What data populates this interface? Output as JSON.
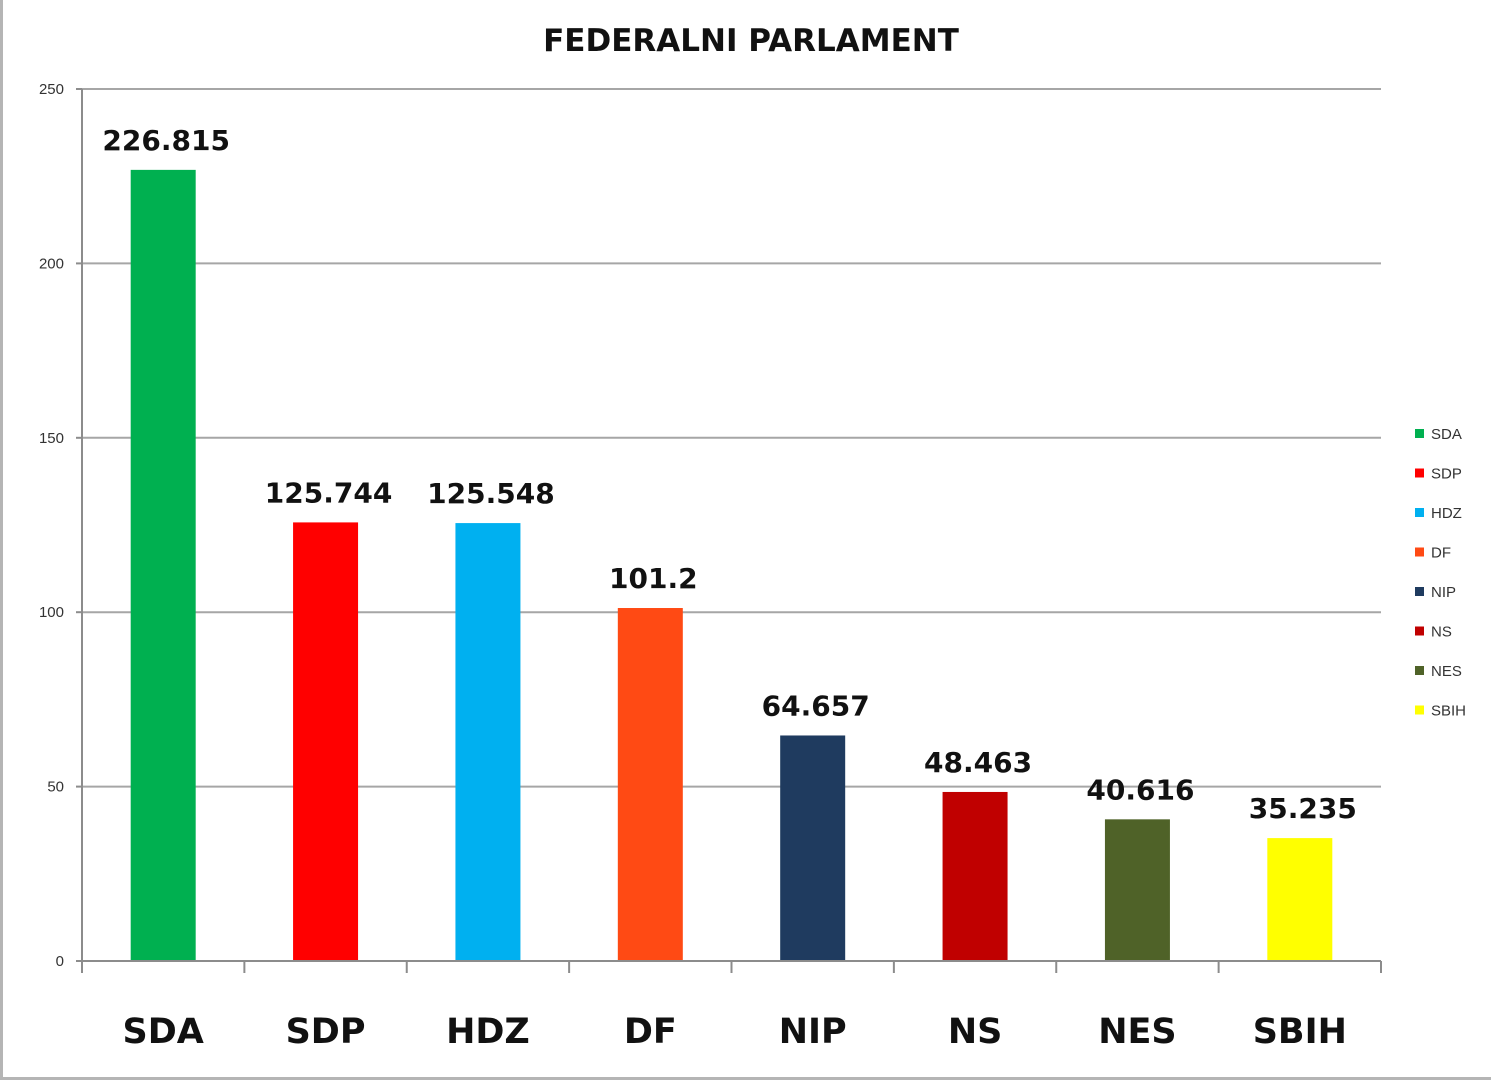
{
  "chart_data": {
    "type": "bar",
    "title": "FEDERALNI PARLAMENT",
    "xlabel": "",
    "ylabel": "",
    "ylim": [
      0,
      250
    ],
    "yticks": [
      "0",
      "50",
      "100",
      "150",
      "200",
      "250"
    ],
    "ytick_values": [
      0,
      50,
      100,
      150,
      200,
      250
    ],
    "grid": true,
    "legend_position": "right",
    "categories": [
      "SDA",
      "SDP",
      "HDZ",
      "DF",
      "NIP",
      "NS",
      "NES",
      "SBIH"
    ],
    "values": [
      226.815,
      125.744,
      125.548,
      101.2,
      64.657,
      48.463,
      40.616,
      35.235
    ],
    "data_labels": [
      "226.815",
      "125.744",
      "125.548",
      "101.2",
      "64.657",
      "48.463",
      "40.616",
      "35.235"
    ],
    "colors": [
      "#00b050",
      "#ff0000",
      "#00b0f0",
      "#ff4a14",
      "#1f3b5f",
      "#c00000",
      "#4f6228",
      "#ffff00"
    ],
    "legend": [
      "SDA",
      "SDP",
      "HDZ",
      "DF",
      "NIP",
      "NS",
      "NES",
      "SBIH"
    ]
  }
}
